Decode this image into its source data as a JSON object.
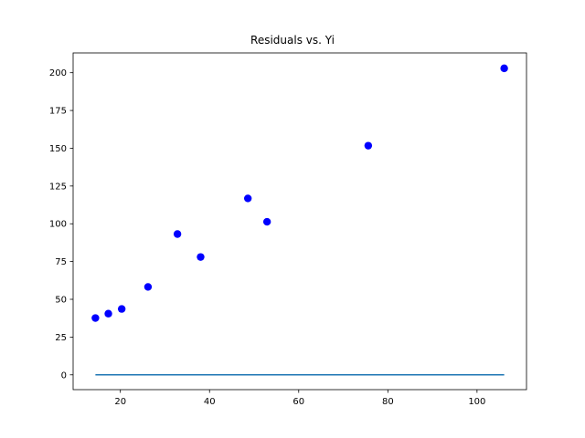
{
  "chart_data": {
    "type": "scatter",
    "title": "Residuals vs. Yi",
    "xlabel": "",
    "ylabel": "",
    "xlim": [
      9.4,
      111.1
    ],
    "ylim": [
      -9.8,
      213.1
    ],
    "xticks": [
      20,
      40,
      60,
      80,
      100
    ],
    "yticks": [
      0,
      25,
      50,
      75,
      100,
      125,
      150,
      175,
      200
    ],
    "grid": false,
    "legend": "none",
    "series": [
      {
        "kind": "scatter",
        "color": "#0000ff",
        "x": [
          14.4,
          17.3,
          20.3,
          26.2,
          32.8,
          38.0,
          48.6,
          52.9,
          75.6,
          106.1
        ],
        "y": [
          37.6,
          40.5,
          43.6,
          58.2,
          93.2,
          78.0,
          116.8,
          101.3,
          151.7,
          202.9
        ]
      },
      {
        "kind": "line",
        "color": "#1f77b4",
        "x": [
          14.4,
          17.3,
          20.3,
          26.2,
          32.8,
          38.0,
          48.6,
          52.9,
          75.6,
          106.1
        ],
        "y": [
          0,
          0,
          0,
          0,
          0,
          0,
          0,
          0,
          0,
          0
        ]
      }
    ]
  }
}
